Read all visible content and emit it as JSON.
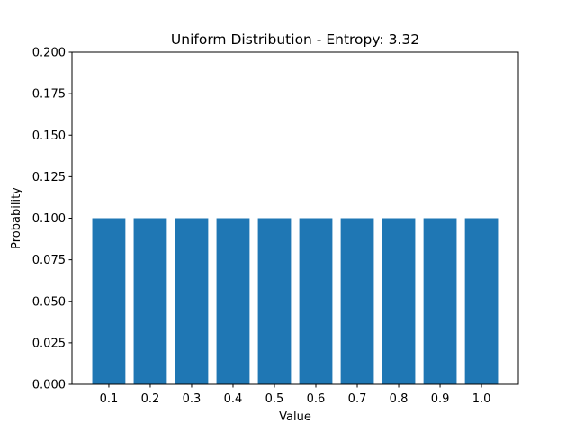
{
  "chart_data": {
    "type": "bar",
    "title": "Uniform Distribution - Entropy: 3.32",
    "xlabel": "Value",
    "ylabel": "Probability",
    "categories": [
      "0.1",
      "0.2",
      "0.3",
      "0.4",
      "0.5",
      "0.6",
      "0.7",
      "0.8",
      "0.9",
      "1.0"
    ],
    "values": [
      0.1,
      0.1,
      0.1,
      0.1,
      0.1,
      0.1,
      0.1,
      0.1,
      0.1,
      0.1
    ],
    "ylim": [
      0,
      0.2
    ],
    "yticks": [
      "0.000",
      "0.025",
      "0.050",
      "0.075",
      "0.100",
      "0.125",
      "0.150",
      "0.175",
      "0.200"
    ],
    "grid": false,
    "bar_color": "#1f77b4"
  }
}
